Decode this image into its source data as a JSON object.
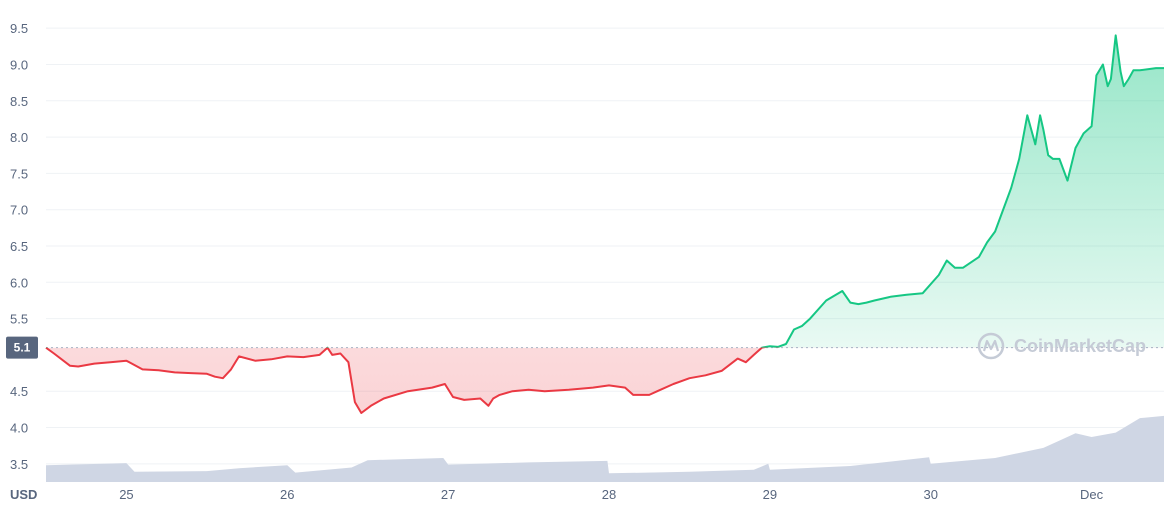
{
  "chart_data": {
    "type": "line",
    "title": "",
    "xlabel": "",
    "ylabel": "",
    "currency_label": "USD",
    "baseline": {
      "value": 5.1,
      "label": "5.1"
    },
    "ylim": [
      3.25,
      9.75
    ],
    "xlim": [
      24.5,
      31.45
    ],
    "y_ticks": [
      {
        "value": 3.5,
        "label": "3.5"
      },
      {
        "value": 4.0,
        "label": "4.0"
      },
      {
        "value": 4.5,
        "label": "4.5"
      },
      {
        "value": 5.5,
        "label": "5.5"
      },
      {
        "value": 6.0,
        "label": "6.0"
      },
      {
        "value": 6.5,
        "label": "6.5"
      },
      {
        "value": 7.0,
        "label": "7.0"
      },
      {
        "value": 7.5,
        "label": "7.5"
      },
      {
        "value": 8.0,
        "label": "8.0"
      },
      {
        "value": 8.5,
        "label": "8.5"
      },
      {
        "value": 9.0,
        "label": "9.0"
      },
      {
        "value": 9.5,
        "label": "9.5"
      }
    ],
    "x_ticks": [
      {
        "value": 25,
        "label": "25"
      },
      {
        "value": 26,
        "label": "26"
      },
      {
        "value": 27,
        "label": "27"
      },
      {
        "value": 28,
        "label": "28"
      },
      {
        "value": 29,
        "label": "29"
      },
      {
        "value": 30,
        "label": "30"
      },
      {
        "value": 31,
        "label": "Dec"
      }
    ],
    "grid": true,
    "colors": {
      "up": "#16c784",
      "down": "#ea3943",
      "volume": "#cfd6e4",
      "grid": "#eff2f5",
      "badge": "#58667e"
    },
    "price": {
      "x": [
        24.5,
        24.55,
        24.65,
        24.7,
        24.8,
        24.9,
        25.0,
        25.1,
        25.2,
        25.3,
        25.4,
        25.5,
        25.55,
        25.6,
        25.65,
        25.7,
        25.8,
        25.9,
        26.0,
        26.1,
        26.2,
        26.25,
        26.28,
        26.33,
        26.38,
        26.42,
        26.46,
        26.52,
        26.6,
        26.75,
        26.9,
        26.98,
        27.03,
        27.1,
        27.2,
        27.25,
        27.28,
        27.32,
        27.4,
        27.5,
        27.6,
        27.75,
        27.9,
        28.0,
        28.1,
        28.15,
        28.25,
        28.3,
        28.4,
        28.5,
        28.6,
        28.7,
        28.8,
        28.85,
        28.9,
        28.95,
        29.0,
        29.05,
        29.1,
        29.15,
        29.2,
        29.25,
        29.35,
        29.45,
        29.5,
        29.55,
        29.6,
        29.65,
        29.75,
        29.85,
        29.95,
        30.05,
        30.1,
        30.15,
        30.2,
        30.3,
        30.35,
        30.4,
        30.5,
        30.55,
        30.6,
        30.65,
        30.68,
        30.7,
        30.73,
        30.76,
        30.8,
        30.85,
        30.9,
        30.95,
        31.0,
        31.03,
        31.07,
        31.1,
        31.12,
        31.15,
        31.18,
        31.2,
        31.23,
        31.26,
        31.3,
        31.4,
        31.45
      ],
      "y": [
        5.1,
        5.02,
        4.85,
        4.84,
        4.88,
        4.9,
        4.92,
        4.8,
        4.79,
        4.76,
        4.75,
        4.74,
        4.7,
        4.68,
        4.8,
        4.98,
        4.92,
        4.94,
        4.98,
        4.97,
        5.0,
        5.1,
        5.0,
        5.02,
        4.9,
        4.35,
        4.2,
        4.3,
        4.4,
        4.5,
        4.55,
        4.6,
        4.42,
        4.38,
        4.4,
        4.3,
        4.4,
        4.45,
        4.5,
        4.52,
        4.5,
        4.52,
        4.55,
        4.58,
        4.55,
        4.45,
        4.45,
        4.5,
        4.6,
        4.68,
        4.72,
        4.78,
        4.95,
        4.9,
        5.0,
        5.1,
        5.12,
        5.11,
        5.15,
        5.35,
        5.4,
        5.5,
        5.75,
        5.88,
        5.72,
        5.7,
        5.72,
        5.75,
        5.8,
        5.83,
        5.85,
        6.1,
        6.3,
        6.2,
        6.2,
        6.35,
        6.55,
        6.7,
        7.3,
        7.7,
        8.3,
        7.9,
        8.3,
        8.1,
        7.75,
        7.7,
        7.7,
        7.4,
        7.85,
        8.05,
        8.15,
        8.85,
        9.0,
        8.7,
        8.8,
        9.4,
        8.9,
        8.7,
        8.8,
        8.92,
        8.92,
        8.95,
        8.95
      ]
    },
    "volume": {
      "x": [
        24.5,
        25.0,
        25.05,
        25.5,
        25.7,
        26.0,
        26.05,
        26.4,
        26.5,
        26.97,
        27.0,
        27.5,
        27.99,
        28.0,
        28.5,
        28.9,
        28.99,
        29.0,
        29.5,
        29.99,
        30.0,
        30.4,
        30.7,
        30.8,
        30.9,
        31.0,
        31.15,
        31.3,
        31.45
      ],
      "y": [
        3.48,
        3.51,
        3.39,
        3.4,
        3.44,
        3.48,
        3.38,
        3.45,
        3.55,
        3.58,
        3.49,
        3.52,
        3.54,
        3.37,
        3.39,
        3.42,
        3.5,
        3.42,
        3.47,
        3.59,
        3.5,
        3.58,
        3.72,
        3.82,
        3.92,
        3.87,
        3.93,
        4.13,
        4.16
      ]
    }
  },
  "watermark": "CoinMarketCap"
}
